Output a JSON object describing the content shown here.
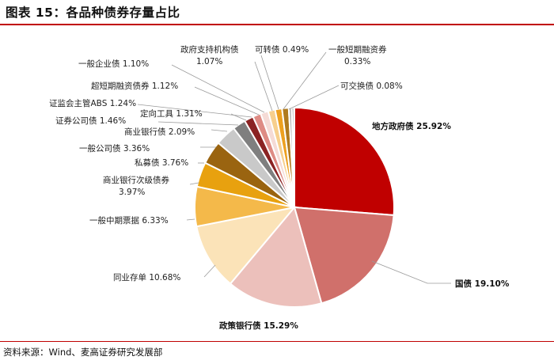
{
  "figure": {
    "title": "图表 15：各品种债券存量占比",
    "source": "资料来源：Wind、麦高证券研究发展部"
  },
  "chart_data": {
    "type": "pie",
    "title": "",
    "slices": [
      {
        "label": "地方政府债",
        "value": 25.92,
        "text": "地方政府债 25.92%",
        "color": "#c00000"
      },
      {
        "label": "国债",
        "value": 19.1,
        "text": "国债 19.10%",
        "color": "#d0706b"
      },
      {
        "label": "政策银行债",
        "value": 15.29,
        "text": "政策银行债 15.29%",
        "color": "#ecc0bb"
      },
      {
        "label": "同业存单",
        "value": 10.68,
        "text": "同业存单 10.68%",
        "color": "#fbe3b8"
      },
      {
        "label": "一般中期票据",
        "value": 6.33,
        "text": "一般中期票据 6.33%",
        "color": "#f4b94a"
      },
      {
        "label": "商业银行次级债券",
        "value": 3.97,
        "text": "商业银行次级债券 3.97%",
        "color": "#e8a10f"
      },
      {
        "label": "私募债",
        "value": 3.76,
        "text": "私募债 3.76%",
        "color": "#9a6410"
      },
      {
        "label": "一般公司债",
        "value": 3.36,
        "text": "一般公司债 3.36%",
        "color": "#c9c9c9"
      },
      {
        "label": "商业银行债",
        "value": 2.09,
        "text": "商业银行债 2.09%",
        "color": "#7f7f7f"
      },
      {
        "label": "证券公司债",
        "value": 1.46,
        "text": "证券公司债 1.46%",
        "color": "#8b2323"
      },
      {
        "label": "定向工具",
        "value": 1.31,
        "text": "定向工具 1.31%",
        "color": "#de8b84"
      },
      {
        "label": "证监会主管ABS",
        "value": 1.24,
        "text": "证监会主管ABS 1.24%",
        "color": "#f5dbd6"
      },
      {
        "label": "超短期融资债券",
        "value": 1.12,
        "text": "超短期融资债券 1.12%",
        "color": "#f7cf8d"
      },
      {
        "label": "一般企业债",
        "value": 1.1,
        "text": "一般企业债 1.10%",
        "color": "#eda020"
      },
      {
        "label": "政府支持机构债",
        "value": 1.07,
        "text": "政府支持机构债 1.07%",
        "color": "#b07a1e"
      },
      {
        "label": "可转债",
        "value": 0.49,
        "text": "可转债 0.49%",
        "color": "#b5b5b5"
      },
      {
        "label": "一般短期融资券",
        "value": 0.33,
        "text": "一般短期融资券 0.33%",
        "color": "#6f6f6f"
      },
      {
        "label": "可交换债",
        "value": 0.08,
        "text": "可交换债 0.08%",
        "color": "#a52a2a"
      }
    ],
    "start_angle": "12 o'clock",
    "direction": "clockwise",
    "legend": "none"
  }
}
